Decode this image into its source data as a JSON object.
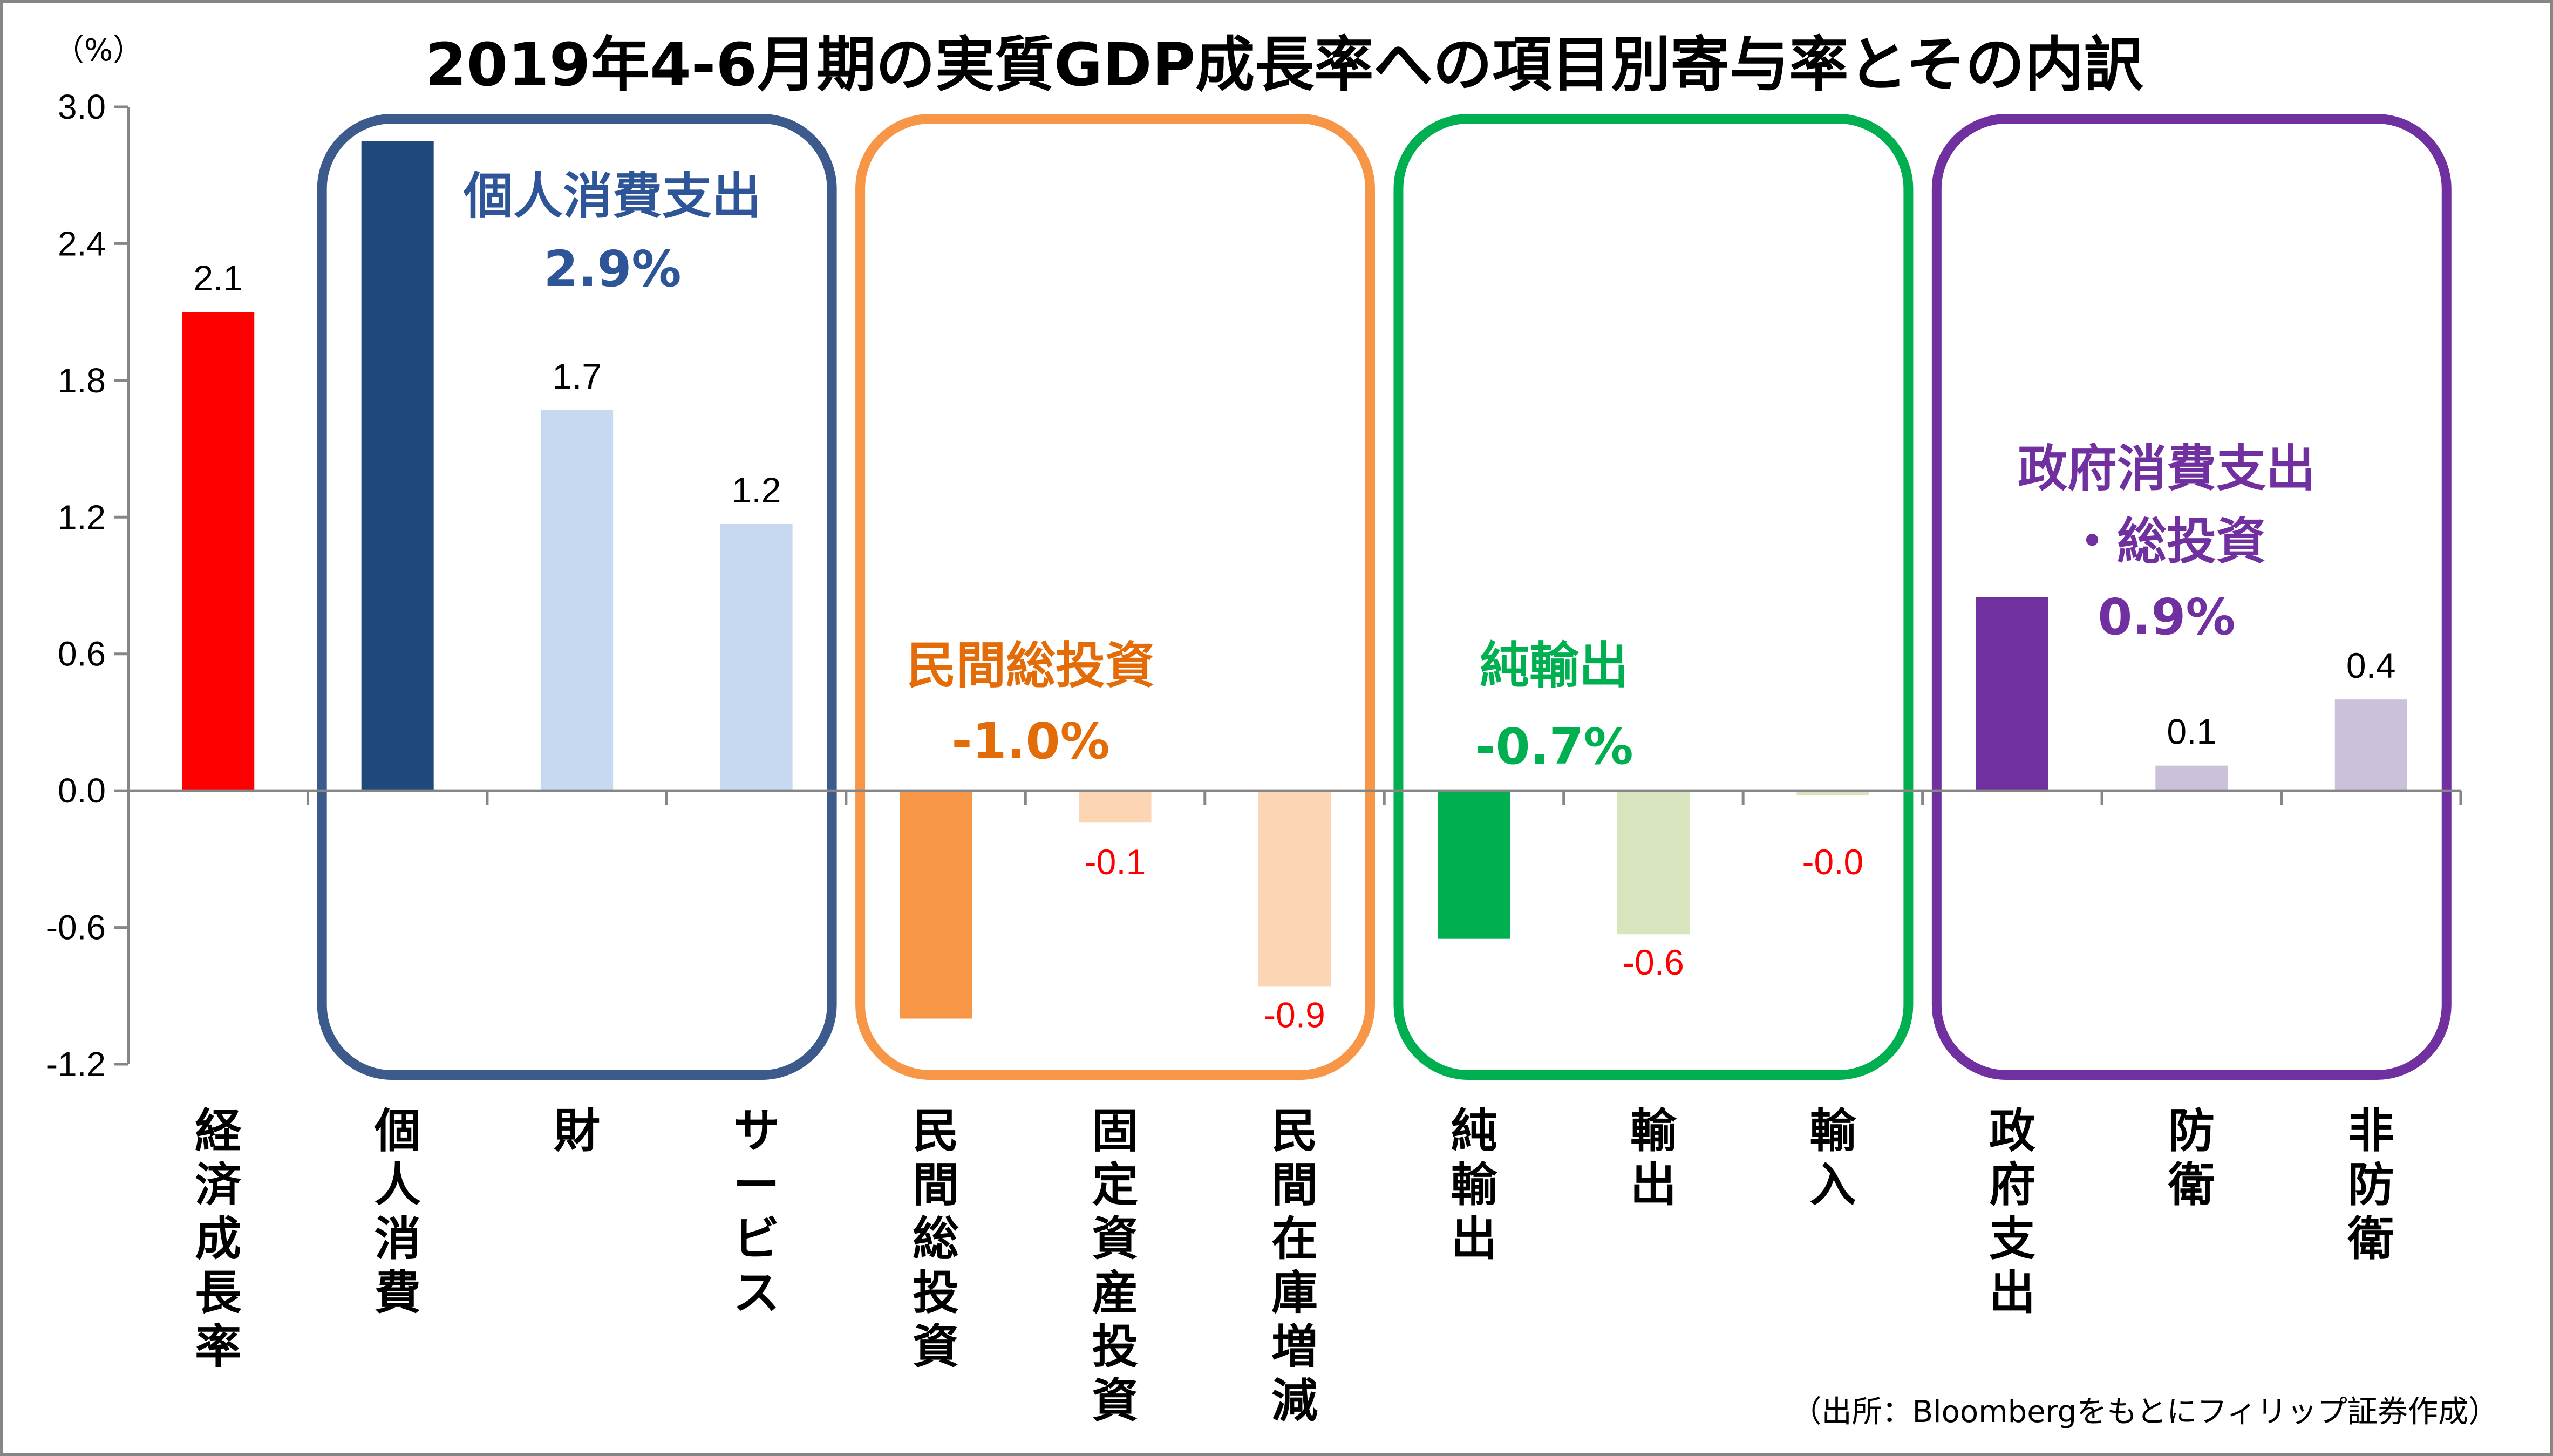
{
  "chart_data": {
    "type": "bar",
    "title": "2019年4-6月期の実質GDP成長率への項目別寄与率とその内訳",
    "unit_label": "（%）",
    "source_note": "（出所：Bloombergをもとにフィリップ証券作成）",
    "ylim": [
      -1.2,
      3.0
    ],
    "yticks": [
      "3.0",
      "2.4",
      "1.8",
      "1.2",
      "0.6",
      "0.0",
      "-0.6",
      "-1.2"
    ],
    "grid": false,
    "categories": [
      "経済成長率",
      "個人消費",
      "財",
      "サービス",
      "民間総投資",
      "固定資産投資",
      "民間在庫増減",
      "純輸出",
      "輸出",
      "輸入",
      "政府支出",
      "防衛",
      "非防衛"
    ],
    "values": [
      2.1,
      2.85,
      1.67,
      1.17,
      -1.0,
      -0.14,
      -0.86,
      -0.65,
      -0.63,
      -0.02,
      0.85,
      0.11,
      0.4
    ],
    "data_labels": [
      "2.1",
      "",
      "1.7",
      "1.2",
      "",
      "-0.1",
      "-0.9",
      "",
      "-0.6",
      "-0.0",
      "",
      "0.1",
      "0.4"
    ],
    "bar_colors": [
      "#ff0000",
      "#1f497d",
      "#c6d9f1",
      "#c6d9f1",
      "#f79646",
      "#fcd5b5",
      "#fcd5b5",
      "#00b050",
      "#d7e4bd",
      "#d7e4bd",
      "#7030a0",
      "#ccc1da",
      "#ccc1da"
    ],
    "label_colors": [
      "#000000",
      "#000000",
      "#000000",
      "#000000",
      "#ff0000",
      "#ff0000",
      "#ff0000",
      "#ff0000",
      "#ff0000",
      "#ff0000",
      "#000000",
      "#000000",
      "#000000"
    ],
    "groups": [
      {
        "name": "個人消費支出",
        "value_text": "2.9%",
        "color": "#3d5a8c",
        "text_color": "#2e5597",
        "from": 1,
        "to": 3
      },
      {
        "name": "民間総投資",
        "value_text": "-1.0%",
        "color": "#f79646",
        "text_color": "#e36c09",
        "from": 4,
        "to": 6
      },
      {
        "name": "純輸出",
        "value_text": "-0.7%",
        "color": "#00b050",
        "text_color": "#00b050",
        "from": 7,
        "to": 9
      },
      {
        "name": "政府消費支出",
        "name2": "・総投資",
        "value_text": "0.9%",
        "color": "#7030a0",
        "text_color": "#7030a0",
        "from": 10,
        "to": 12
      }
    ]
  }
}
